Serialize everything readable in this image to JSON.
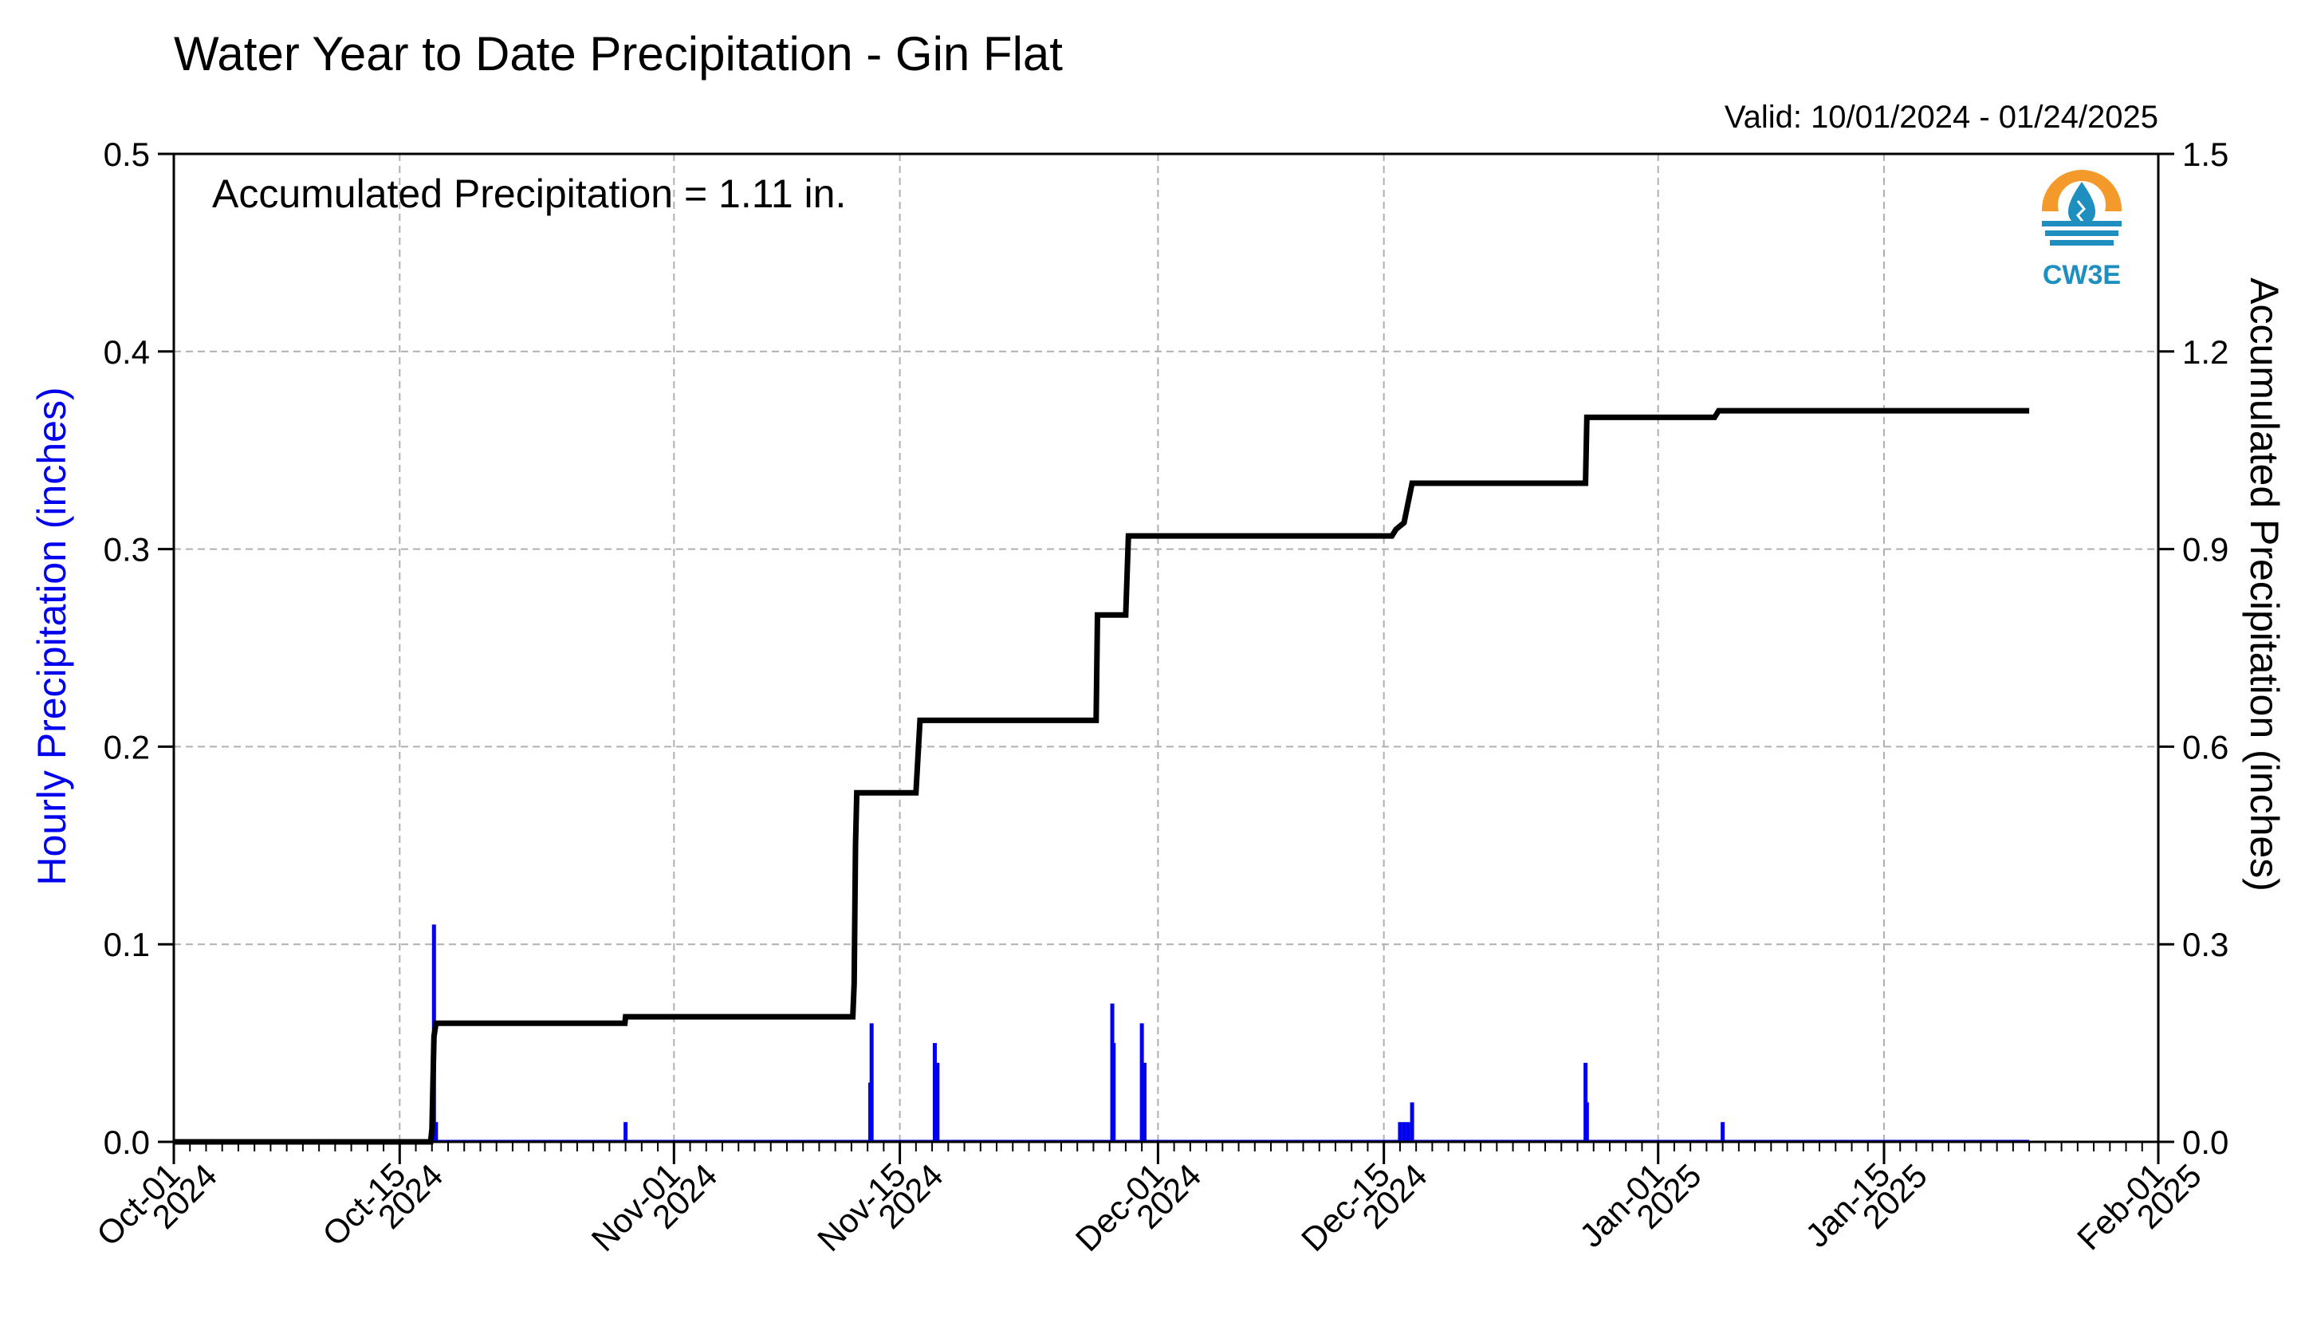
{
  "chart_data": {
    "type": "bar+line",
    "title": "Water Year to Date Precipitation - Gin Flat",
    "subtitle": "Valid: 10/01/2024 - 01/24/2025",
    "annotation": "Accumulated Precipitation = 1.11 in.",
    "logo_text": "CW3E",
    "y_left_label": "Hourly Precipitation (inches)",
    "y_right_label": "Accumulated Precipitation (inches)",
    "y_left_range": [
      0,
      0.5
    ],
    "y_left_ticks": [
      "0.0",
      "0.1",
      "0.2",
      "0.3",
      "0.4",
      "0.5"
    ],
    "y_right_range": [
      0,
      1.5
    ],
    "y_right_ticks": [
      "0.0",
      "0.3",
      "0.6",
      "0.9",
      "1.2",
      "1.5"
    ],
    "x_range": [
      "2024-10-01",
      "2025-02-01"
    ],
    "x_ticks": [
      {
        "date": "2024-10-01",
        "line1": "Oct-01",
        "line2": "2024"
      },
      {
        "date": "2024-10-15",
        "line1": "Oct-15",
        "line2": "2024"
      },
      {
        "date": "2024-11-01",
        "line1": "Nov-01",
        "line2": "2024"
      },
      {
        "date": "2024-11-15",
        "line1": "Nov-15",
        "line2": "2024"
      },
      {
        "date": "2024-12-01",
        "line1": "Dec-01",
        "line2": "2024"
      },
      {
        "date": "2024-12-15",
        "line1": "Dec-15",
        "line2": "2024"
      },
      {
        "date": "2025-01-01",
        "line1": "Jan-01",
        "line2": "2025"
      },
      {
        "date": "2025-01-15",
        "line1": "Jan-15",
        "line2": "2025"
      },
      {
        "date": "2025-02-01",
        "line1": "Feb-01",
        "line2": "2025"
      }
    ],
    "grid": true,
    "colors": {
      "hourly": "#0000ee",
      "accumulated": "#000000",
      "grid": "#b0b0b0",
      "logo_orange": "#f39a2b",
      "logo_blue": "#1f8fc0"
    },
    "hourly_series": {
      "name": "Hourly Precipitation",
      "points": [
        {
          "x": "2024-10-17T01:00",
          "y": 0.02
        },
        {
          "x": "2024-10-17T03:00",
          "y": 0.11
        },
        {
          "x": "2024-10-17T06:00",
          "y": 0.01
        },
        {
          "x": "2024-10-29T00:00",
          "y": 0.01
        },
        {
          "x": "2024-11-13T04:00",
          "y": 0.03
        },
        {
          "x": "2024-11-13T06:00",
          "y": 0.06
        },
        {
          "x": "2024-11-17T04:00",
          "y": 0.05
        },
        {
          "x": "2024-11-17T08:00",
          "y": 0.04
        },
        {
          "x": "2024-11-28T04:00",
          "y": 0.07
        },
        {
          "x": "2024-11-28T06:00",
          "y": 0.05
        },
        {
          "x": "2024-11-30T00:00",
          "y": 0.06
        },
        {
          "x": "2024-11-30T04:00",
          "y": 0.04
        },
        {
          "x": "2024-12-16T00:00",
          "y": 0.01
        },
        {
          "x": "2024-12-16T06:00",
          "y": 0.01
        },
        {
          "x": "2024-12-16T12:00",
          "y": 0.01
        },
        {
          "x": "2024-12-16T18:00",
          "y": 0.02
        },
        {
          "x": "2024-12-27T12:00",
          "y": 0.04
        },
        {
          "x": "2024-12-27T14:00",
          "y": 0.02
        },
        {
          "x": "2025-01-05T00:00",
          "y": 0.01
        }
      ]
    },
    "accumulated_series": {
      "name": "Accumulated Precipitation",
      "points": [
        {
          "x": "2024-10-01T00:00",
          "y": 0.0
        },
        {
          "x": "2024-10-16T22:00",
          "y": 0.0
        },
        {
          "x": "2024-10-17T00:00",
          "y": 0.02
        },
        {
          "x": "2024-10-17T03:00",
          "y": 0.16
        },
        {
          "x": "2024-10-17T06:00",
          "y": 0.18
        },
        {
          "x": "2024-10-28T23:00",
          "y": 0.18
        },
        {
          "x": "2024-10-29T00:00",
          "y": 0.19
        },
        {
          "x": "2024-11-12T02:00",
          "y": 0.19
        },
        {
          "x": "2024-11-12T04:00",
          "y": 0.24
        },
        {
          "x": "2024-11-12T06:00",
          "y": 0.45
        },
        {
          "x": "2024-11-12T08:00",
          "y": 0.53
        },
        {
          "x": "2024-11-16T00:00",
          "y": 0.53
        },
        {
          "x": "2024-11-16T06:00",
          "y": 0.64
        },
        {
          "x": "2024-11-27T04:00",
          "y": 0.64
        },
        {
          "x": "2024-11-27T06:00",
          "y": 0.8
        },
        {
          "x": "2024-11-29T00:00",
          "y": 0.8
        },
        {
          "x": "2024-11-29T04:00",
          "y": 0.92
        },
        {
          "x": "2024-12-15T12:00",
          "y": 0.92
        },
        {
          "x": "2024-12-15T18:00",
          "y": 0.93
        },
        {
          "x": "2024-12-16T06:00",
          "y": 0.94
        },
        {
          "x": "2024-12-16T18:00",
          "y": 1.0
        },
        {
          "x": "2024-12-27T12:00",
          "y": 1.0
        },
        {
          "x": "2024-12-27T14:00",
          "y": 1.1
        },
        {
          "x": "2025-01-04T12:00",
          "y": 1.1
        },
        {
          "x": "2025-01-04T18:00",
          "y": 1.11
        },
        {
          "x": "2025-01-24T00:00",
          "y": 1.11
        }
      ]
    }
  }
}
